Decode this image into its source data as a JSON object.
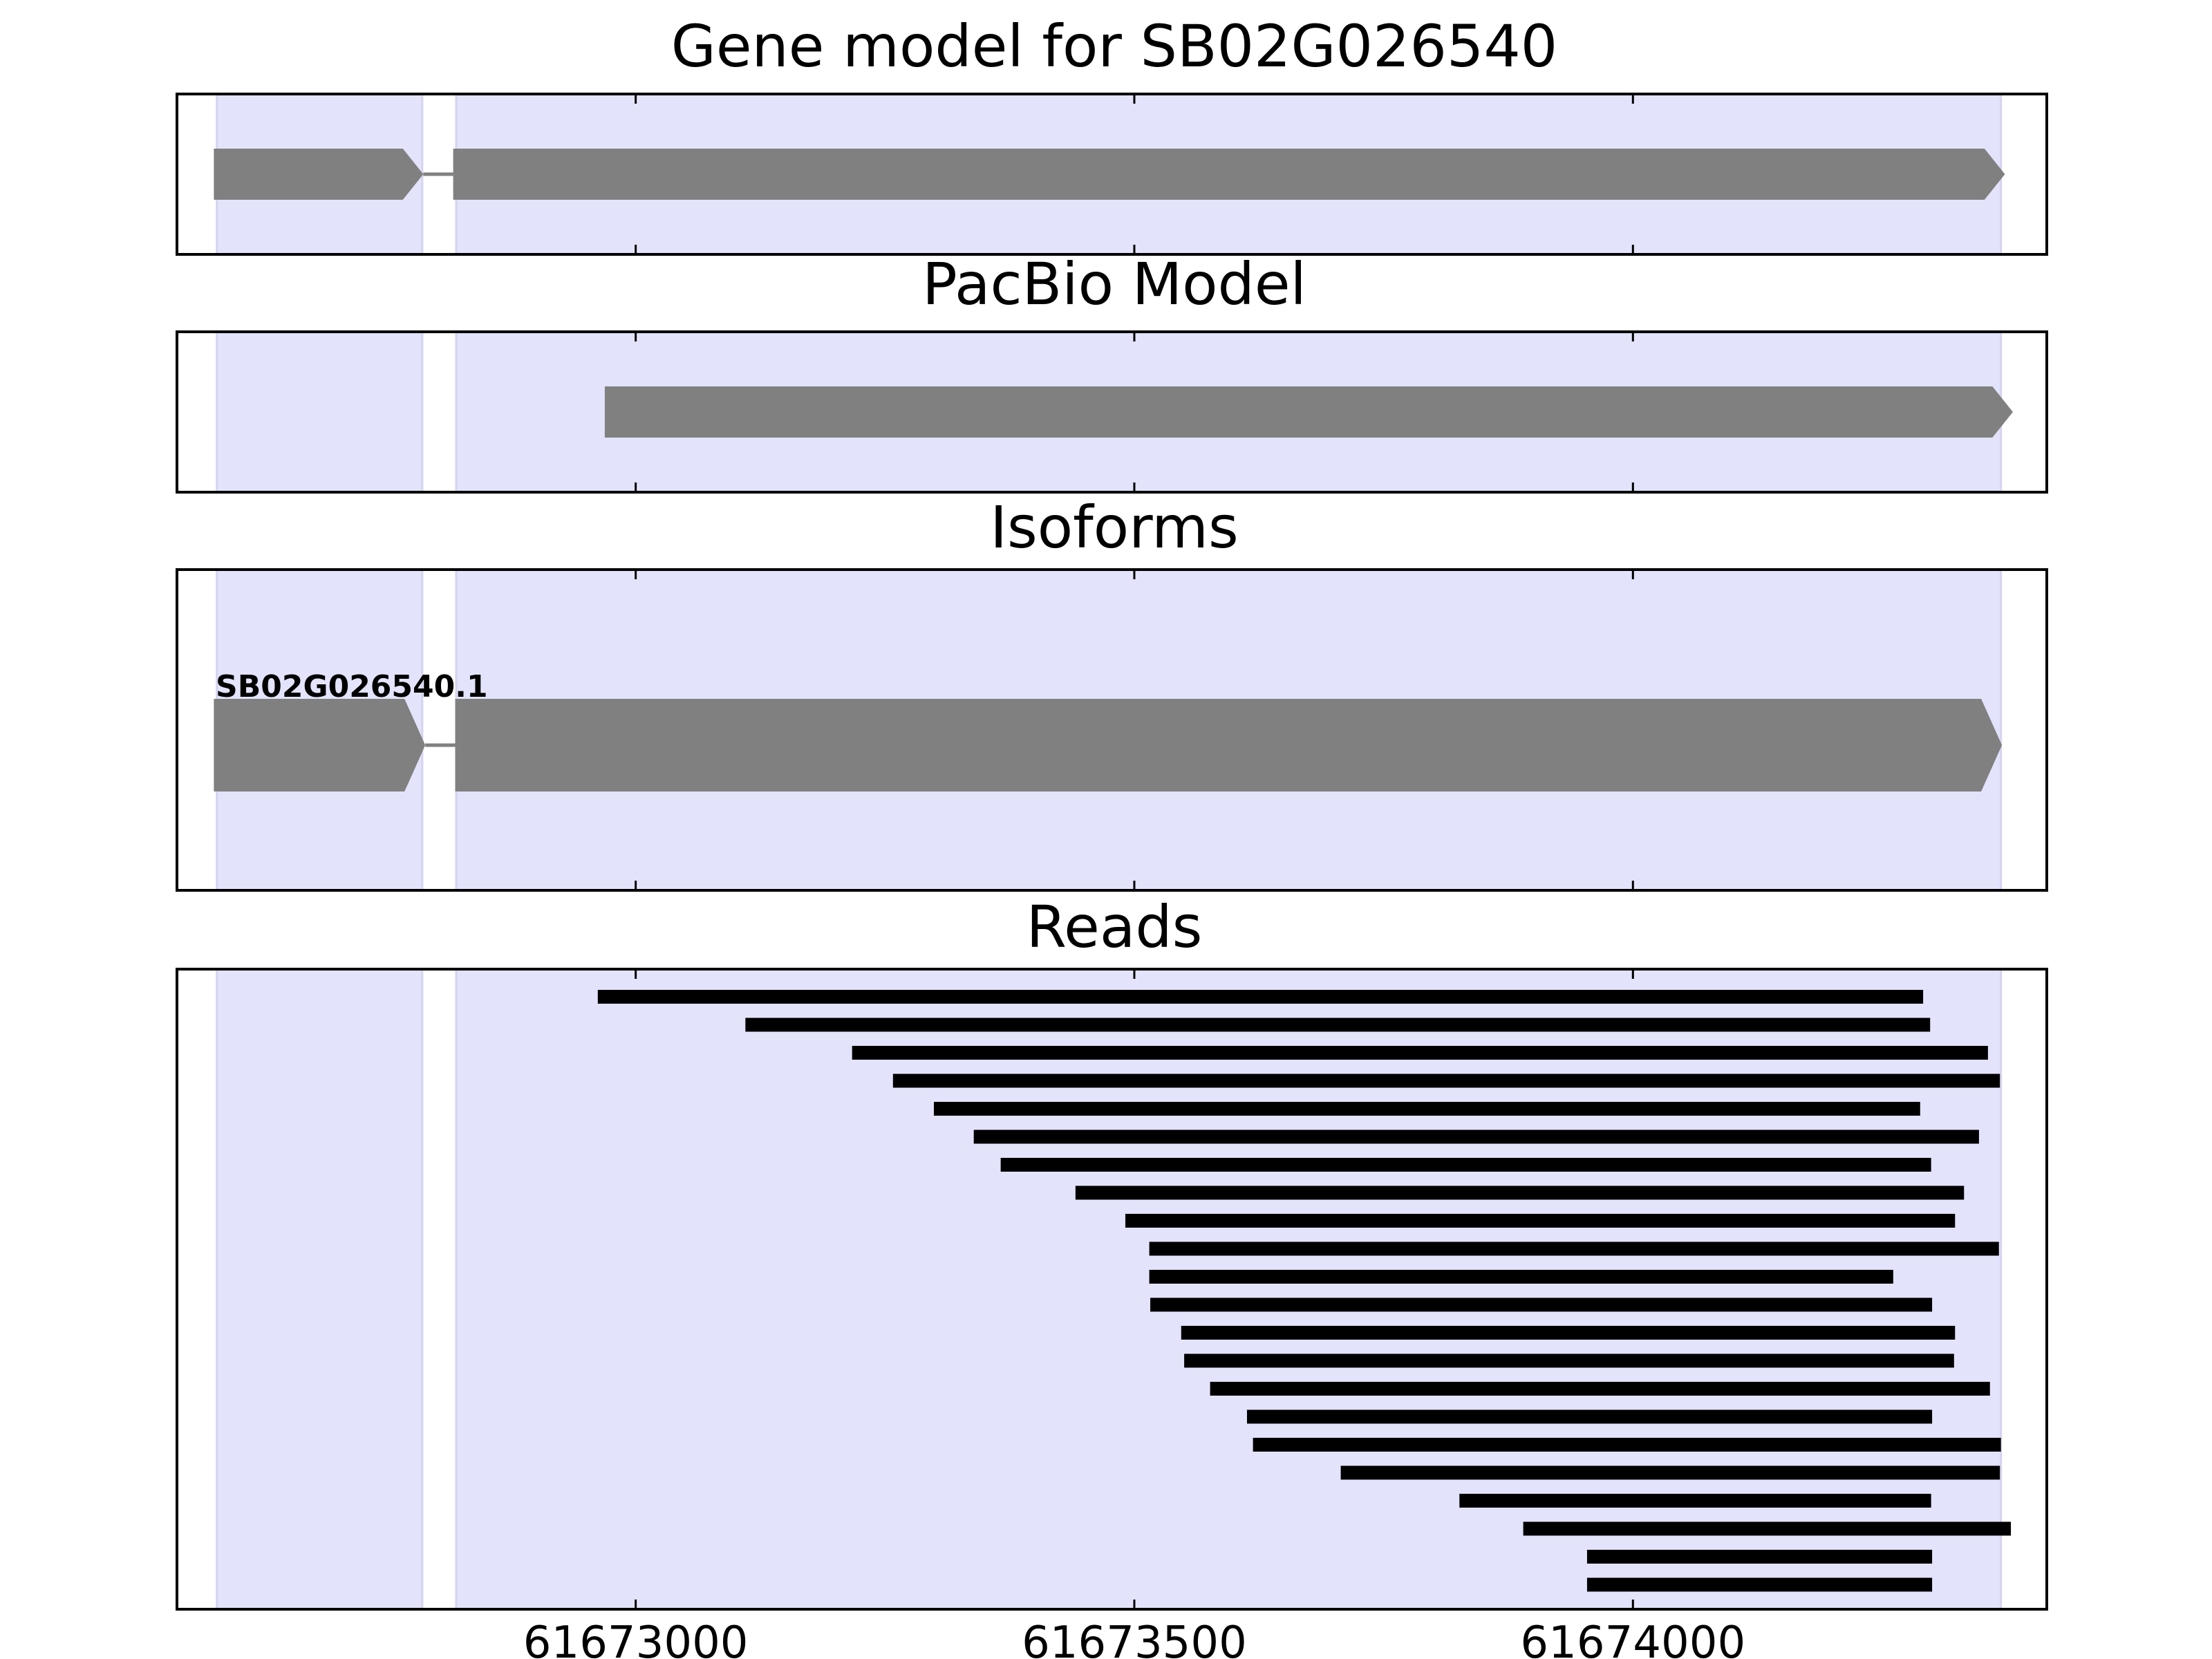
{
  "chart_data": {
    "type": "gene-structure-track",
    "xlim": [
      61672540,
      61674415
    ],
    "x_ticks": [
      61673000,
      61673500,
      61674000
    ],
    "x_tick_labels": [
      "61673000",
      "61673500",
      "61674000"
    ],
    "grid": false,
    "colors": {
      "exon_shading": "#e3e3fc",
      "exon_shading_edge": "#d4d4f0",
      "gene_feature": "#808080",
      "read": "#000000",
      "axes": "#000000"
    },
    "exon_regions": [
      [
        61672580,
        61672786
      ],
      [
        61672820,
        61674369
      ]
    ],
    "panels": [
      {
        "id": "gene-model",
        "title": "Gene model for SB02G026540",
        "strand": "+",
        "exons": [
          [
            61672577,
            61672787
          ],
          [
            61672817,
            61674373
          ]
        ]
      },
      {
        "id": "pacbio-model",
        "title": "PacBio Model",
        "strand": "+",
        "exons": [
          [
            61672969,
            61674381
          ]
        ]
      },
      {
        "id": "isoforms",
        "title": "Isoforms",
        "strand": "+",
        "isoforms": [
          {
            "label": "SB02G026540.1",
            "exons": [
              [
                61672577,
                61672789
              ],
              [
                61672819,
                61674370
              ]
            ]
          }
        ]
      },
      {
        "id": "reads",
        "title": "Reads",
        "reads": [
          [
            61672962,
            61674291
          ],
          [
            61673110,
            61674298
          ],
          [
            61673217,
            61674356
          ],
          [
            61673258,
            61674368
          ],
          [
            61673299,
            61674288
          ],
          [
            61673339,
            61674347
          ],
          [
            61673366,
            61674299
          ],
          [
            61673441,
            61674332
          ],
          [
            61673491,
            61674323
          ],
          [
            61673515,
            61674367
          ],
          [
            61673515,
            61674261
          ],
          [
            61673516,
            61674300
          ],
          [
            61673547,
            61674323
          ],
          [
            61673550,
            61674322
          ],
          [
            61673576,
            61674358
          ],
          [
            61673613,
            61674300
          ],
          [
            61673619,
            61674369
          ],
          [
            61673707,
            61674368
          ],
          [
            61673826,
            61674299
          ],
          [
            61673890,
            61674379
          ],
          [
            61673954,
            61674300
          ],
          [
            61673954,
            61674300
          ]
        ]
      }
    ]
  }
}
